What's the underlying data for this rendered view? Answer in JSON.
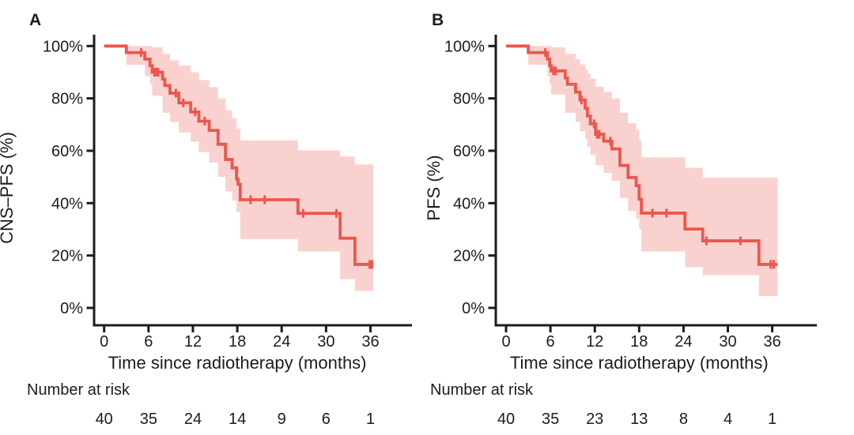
{
  "figure": {
    "description": "Kaplan-Meier survival curves with 95% confidence bands, two panels",
    "accent_color": "#eb574f",
    "band_color": "#f9d2cf",
    "axis_color": "#1c1c1c"
  },
  "chart_data": [
    {
      "type": "line",
      "subtype": "kaplan-meier-step",
      "panel_label": "A",
      "ylabel": "CNS–PFS (%)",
      "xlabel": "Time since radiotherapy (months)",
      "x_ticks": [
        0,
        6,
        12,
        18,
        24,
        30,
        36
      ],
      "y_tick_values": [
        0,
        20,
        40,
        60,
        80,
        100
      ],
      "y_tick_labels": [
        "0%",
        "20%",
        "40%",
        "60%",
        "80%",
        "100%"
      ],
      "xlim": [
        0,
        42
      ],
      "ylim": [
        0,
        100
      ],
      "line_color": "#eb574f",
      "band_color": "#f9d2cf",
      "steps": [
        [
          0,
          100
        ],
        [
          3,
          97.5
        ],
        [
          5.5,
          95
        ],
        [
          6.2,
          92.5
        ],
        [
          6.5,
          90
        ],
        [
          7.9,
          87.4
        ],
        [
          8.2,
          84.9
        ],
        [
          8.9,
          82
        ],
        [
          10.1,
          78.3
        ],
        [
          11.7,
          74.8
        ],
        [
          12.8,
          71.3
        ],
        [
          14.2,
          67.8
        ],
        [
          15.4,
          62.5
        ],
        [
          16.4,
          56.7
        ],
        [
          17.3,
          53.5
        ],
        [
          17.9,
          49.2
        ],
        [
          18.1,
          47.2
        ],
        [
          18.4,
          41.3
        ],
        [
          26.2,
          36.1
        ],
        [
          31.9,
          26.6
        ],
        [
          33.9,
          16.6
        ]
      ],
      "end_time": 36.4,
      "censors": [
        [
          5.0,
          97.5
        ],
        [
          6.8,
          90
        ],
        [
          7.1,
          90
        ],
        [
          7.3,
          90
        ],
        [
          9.7,
          82
        ],
        [
          10.7,
          78.3
        ],
        [
          12.3,
          74.8
        ],
        [
          13.6,
          71.3
        ],
        [
          19.8,
          41.3
        ],
        [
          21.7,
          41.3
        ],
        [
          26.9,
          36.1
        ],
        [
          31.4,
          36.1
        ],
        [
          35.9,
          16.6
        ],
        [
          36.2,
          16.6
        ]
      ],
      "band": [
        [
          3,
          5.5,
          100,
          92.8
        ],
        [
          5.5,
          6.2,
          100,
          88.5
        ],
        [
          6.2,
          6.5,
          100,
          85.5
        ],
        [
          6.5,
          7.9,
          99.5,
          81
        ],
        [
          7.9,
          8.9,
          97,
          74.5
        ],
        [
          8.9,
          10.1,
          94.5,
          71
        ],
        [
          10.1,
          11.7,
          92.5,
          67
        ],
        [
          11.7,
          12.8,
          90,
          63.5
        ],
        [
          12.8,
          14.2,
          87,
          59.5
        ],
        [
          14.2,
          15.4,
          84.3,
          55.5
        ],
        [
          15.4,
          16.4,
          80,
          50
        ],
        [
          16.4,
          17.3,
          75.5,
          44.5
        ],
        [
          17.3,
          17.9,
          72.5,
          41
        ],
        [
          17.9,
          18.4,
          68.5,
          36.5
        ],
        [
          18.4,
          26.2,
          64,
          26.3
        ],
        [
          26.2,
          31.9,
          60.2,
          21.5
        ],
        [
          31.9,
          33.9,
          57.8,
          11
        ],
        [
          33.9,
          36.4,
          54.8,
          6.5
        ]
      ],
      "number_at_risk_label": "Number at risk",
      "number_at_risk": [
        40,
        35,
        24,
        14,
        9,
        6,
        1
      ]
    },
    {
      "type": "line",
      "subtype": "kaplan-meier-step",
      "panel_label": "B",
      "ylabel": "PFS (%)",
      "xlabel": "Time since radiotherapy (months)",
      "x_ticks": [
        0,
        6,
        12,
        18,
        24,
        30,
        36
      ],
      "y_tick_values": [
        0,
        20,
        40,
        60,
        80,
        100
      ],
      "y_tick_labels": [
        "0%",
        "20%",
        "40%",
        "60%",
        "80%",
        "100%"
      ],
      "xlim": [
        0,
        42
      ],
      "ylim": [
        0,
        100
      ],
      "line_color": "#eb574f",
      "band_color": "#f9d2cf",
      "steps": [
        [
          0,
          100
        ],
        [
          3,
          97.5
        ],
        [
          5.6,
          95
        ],
        [
          5.9,
          92.5
        ],
        [
          6.1,
          90.5
        ],
        [
          8.0,
          87.8
        ],
        [
          8.3,
          85.4
        ],
        [
          9.4,
          82.4
        ],
        [
          10.0,
          79.4
        ],
        [
          10.7,
          76.3
        ],
        [
          11.0,
          73.3
        ],
        [
          11.4,
          70.3
        ],
        [
          12.1,
          66.3
        ],
        [
          13.2,
          63.7
        ],
        [
          14.3,
          60.7
        ],
        [
          15.4,
          54.4
        ],
        [
          16.5,
          49.8
        ],
        [
          17.6,
          46.7
        ],
        [
          18.0,
          41.5
        ],
        [
          18.3,
          36.2
        ],
        [
          24.2,
          30.1
        ],
        [
          26.6,
          25.6
        ],
        [
          34.2,
          16.6
        ]
      ],
      "end_time": 36.7,
      "censors": [
        [
          5.3,
          97.5
        ],
        [
          6.4,
          90.5
        ],
        [
          6.7,
          90.5
        ],
        [
          10.2,
          79.4
        ],
        [
          11.9,
          70.3
        ],
        [
          12.3,
          66.3
        ],
        [
          12.6,
          66.3
        ],
        [
          14.1,
          63.7
        ],
        [
          19.8,
          36.2
        ],
        [
          21.7,
          36.2
        ],
        [
          27.1,
          25.6
        ],
        [
          31.7,
          25.6
        ],
        [
          35.8,
          16.6
        ],
        [
          36.2,
          16.6
        ]
      ],
      "band": [
        [
          3,
          5.6,
          100,
          92.8
        ],
        [
          5.6,
          5.9,
          100,
          88.5
        ],
        [
          5.9,
          6.1,
          100,
          85.5
        ],
        [
          6.1,
          8.0,
          99.5,
          81.5
        ],
        [
          8.0,
          9.4,
          97,
          74.5
        ],
        [
          9.4,
          10.0,
          95,
          71
        ],
        [
          10.0,
          10.7,
          93,
          67.5
        ],
        [
          10.7,
          11.0,
          91,
          64.5
        ],
        [
          11.0,
          11.4,
          89.5,
          61.5
        ],
        [
          11.4,
          12.1,
          87.5,
          58.5
        ],
        [
          12.1,
          13.2,
          84.5,
          54.5
        ],
        [
          13.2,
          14.3,
          82.5,
          51.5
        ],
        [
          14.3,
          15.4,
          80,
          48.5
        ],
        [
          15.4,
          16.5,
          74.5,
          42
        ],
        [
          16.5,
          17.6,
          70.5,
          37
        ],
        [
          17.6,
          18.0,
          68,
          34
        ],
        [
          18.0,
          18.3,
          64,
          30
        ],
        [
          18.3,
          24.2,
          57.5,
          21.5
        ],
        [
          24.2,
          26.6,
          53.5,
          15.5
        ],
        [
          26.6,
          34.2,
          49.7,
          12.5
        ],
        [
          34.2,
          36.7,
          49.7,
          4.5
        ]
      ],
      "number_at_risk_label": "Number at risk",
      "number_at_risk": [
        40,
        35,
        23,
        13,
        8,
        4,
        1
      ]
    }
  ]
}
